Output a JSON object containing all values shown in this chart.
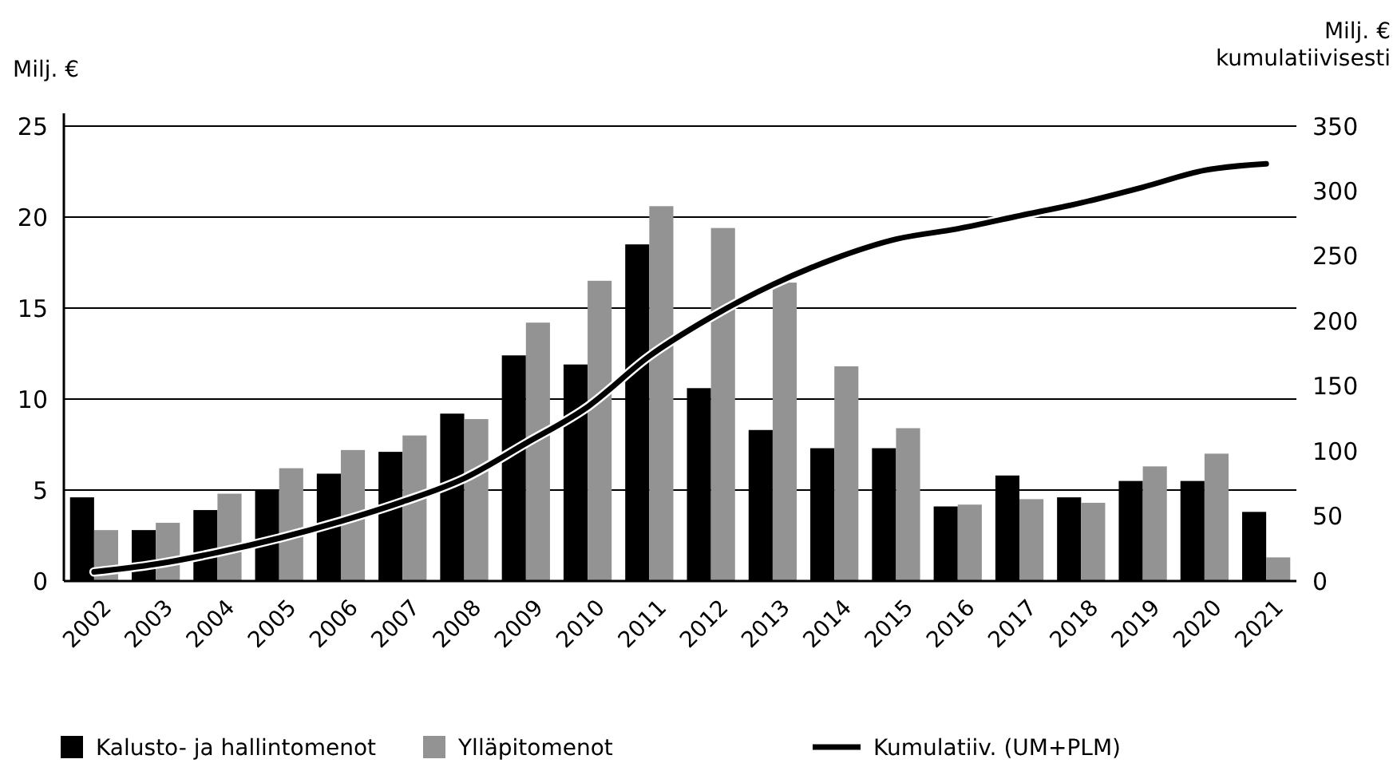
{
  "chart_data": {
    "type": "bar",
    "ylabel": "Milj. €",
    "y2label": "Milj. €\nkumulatiivisesti",
    "categories": [
      "2002",
      "2003",
      "2004",
      "2005",
      "2006",
      "2007",
      "2008",
      "2009",
      "2010",
      "2011",
      "2012",
      "2013",
      "2014",
      "2015",
      "2016",
      "2017",
      "2018",
      "2019",
      "2020",
      "2021"
    ],
    "series": [
      {
        "name": "Kalusto- ja hallintomenot",
        "color": "#000000",
        "values": [
          4.6,
          2.8,
          3.9,
          5.0,
          5.9,
          7.1,
          9.2,
          12.4,
          11.9,
          18.5,
          10.6,
          8.3,
          7.3,
          7.3,
          4.1,
          5.8,
          4.6,
          5.5,
          5.5,
          3.8
        ]
      },
      {
        "name": "Ylläpitomenot",
        "color": "#939393",
        "values": [
          2.8,
          3.2,
          4.8,
          6.2,
          7.2,
          8.0,
          8.9,
          14.2,
          16.5,
          20.6,
          19.4,
          16.4,
          11.8,
          8.4,
          4.2,
          4.5,
          4.3,
          6.3,
          7.0,
          1.3
        ]
      },
      {
        "name": "Kumulatiiv. (UM+PLM)",
        "color": "#000000",
        "type": "line",
        "axis": "y2",
        "values": [
          7,
          13,
          22,
          33,
          46,
          61,
          79,
          106,
          134,
          173,
          203,
          228,
          248,
          263,
          271,
          281,
          291,
          303,
          316,
          321
        ]
      }
    ],
    "ylim": [
      0,
      25
    ],
    "yticks": [
      0,
      5,
      10,
      15,
      20,
      25
    ],
    "y2lim": [
      0,
      350
    ],
    "y2ticks": [
      0,
      50,
      100,
      150,
      200,
      250,
      300,
      350
    ],
    "grid": "y",
    "legend": "bottom",
    "marker": "none",
    "line_style": "solid"
  }
}
